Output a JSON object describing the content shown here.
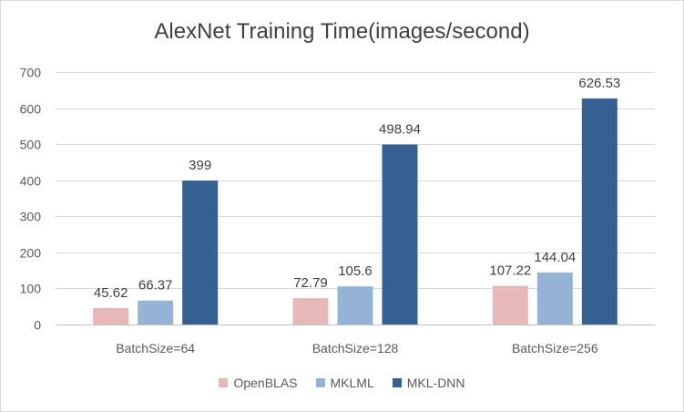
{
  "chart_data": {
    "type": "bar",
    "title": "AlexNet Training Time(images/second)",
    "xlabel": "",
    "ylabel": "",
    "categories": [
      "BatchSize=64",
      "BatchSize=128",
      "BatchSize=256"
    ],
    "series": [
      {
        "name": "OpenBLAS",
        "color": "#e6b9b8",
        "values": [
          45.62,
          72.79,
          107.22
        ],
        "labels": [
          "45.62",
          "72.79",
          "107.22"
        ]
      },
      {
        "name": "MKLML",
        "color": "#95b3d7",
        "values": [
          66.37,
          105.6,
          144.04
        ],
        "labels": [
          "66.37",
          "105.6",
          "144.04"
        ]
      },
      {
        "name": "MKL-DNN",
        "color": "#366092",
        "values": [
          399,
          498.94,
          626.53
        ],
        "labels": [
          "399",
          "498.94",
          "626.53"
        ]
      }
    ],
    "ylim": [
      0,
      700
    ],
    "yticks": [
      0,
      100,
      200,
      300,
      400,
      500,
      600,
      700
    ],
    "grid": true,
    "legend_position": "bottom"
  }
}
